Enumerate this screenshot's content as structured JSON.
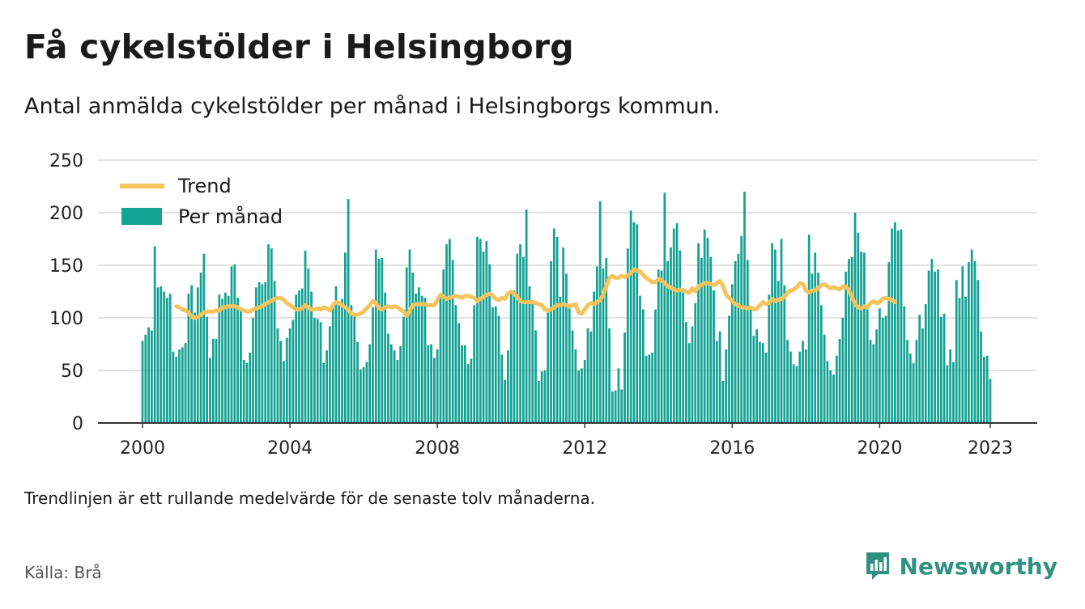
{
  "title": "Få cykelstölder i Helsingborg",
  "subtitle": "Antal anmälda cykelstölder per månad i Helsingborgs kommun.",
  "footnote": "Trendlinjen är ett rullande medelvärde för de senaste tolv månaderna.",
  "source": "Källa: Brå",
  "brand": "Newsworthy",
  "colors": {
    "bar": "#12a193",
    "trend": "#f7c35c",
    "grid": "#d9d9d9",
    "brand": "#2f9182"
  },
  "chart_data": {
    "type": "bar",
    "x_start": "2000-01",
    "x_end": "2023-02",
    "ylim": [
      0,
      250
    ],
    "yticks": [
      "0",
      "50",
      "100",
      "150",
      "200",
      "250"
    ],
    "xticks": [
      "2000",
      "2004",
      "2008",
      "2012",
      "2016",
      "2020",
      "2023"
    ],
    "grid": true,
    "legend_position": "top-left",
    "series": [
      {
        "name": "Per månad",
        "type": "bar",
        "values": [
          78,
          84,
          91,
          88,
          168,
          129,
          130,
          125,
          119,
          123,
          68,
          63,
          70,
          72,
          76,
          123,
          131,
          105,
          129,
          143,
          161,
          101,
          62,
          80,
          80,
          122,
          118,
          124,
          121,
          149,
          151,
          119,
          110,
          60,
          57,
          67,
          100,
          129,
          134,
          132,
          134,
          170,
          166,
          135,
          90,
          78,
          59,
          81,
          90,
          98,
          122,
          126,
          128,
          164,
          147,
          125,
          100,
          99,
          96,
          57,
          69,
          92,
          110,
          130,
          115,
          118,
          162,
          213,
          112,
          102,
          77,
          51,
          53,
          58,
          75,
          110,
          165,
          156,
          157,
          124,
          85,
          75,
          69,
          60,
          73,
          101,
          148,
          165,
          143,
          123,
          129,
          121,
          119,
          74,
          75,
          62,
          70,
          121,
          146,
          170,
          175,
          155,
          112,
          95,
          74,
          74,
          56,
          61,
          112,
          177,
          175,
          163,
          173,
          151,
          110,
          111,
          102,
          65,
          41,
          69,
          124,
          126,
          161,
          170,
          158,
          203,
          130,
          115,
          88,
          40,
          49,
          50,
          105,
          154,
          185,
          177,
          120,
          167,
          142,
          109,
          88,
          70,
          50,
          52,
          60,
          90,
          87,
          125,
          149,
          211,
          147,
          157,
          90,
          30,
          31,
          52,
          32,
          86,
          166,
          202,
          191,
          189,
          121,
          108,
          64,
          65,
          67,
          108,
          146,
          145,
          219,
          154,
          167,
          185,
          190,
          164,
          126,
          96,
          76,
          92,
          114,
          171,
          157,
          184,
          176,
          158,
          126,
          78,
          87,
          40,
          70,
          102,
          132,
          154,
          161,
          178,
          220,
          155,
          111,
          83,
          89,
          77,
          76,
          67,
          122,
          171,
          165,
          135,
          175,
          131,
          79,
          68,
          56,
          54,
          68,
          78,
          70,
          179,
          142,
          162,
          143,
          112,
          84,
          59,
          50,
          46,
          64,
          80,
          100,
          144,
          156,
          158,
          200,
          181,
          163,
          162,
          108,
          79,
          75,
          89,
          109,
          100,
          102,
          153,
          185,
          191,
          183,
          184,
          111,
          79,
          66,
          57,
          79,
          103,
          90,
          113,
          145,
          156,
          144,
          146,
          101,
          104,
          55,
          70,
          58,
          136,
          119,
          149,
          120,
          153,
          165,
          154,
          136,
          87,
          63,
          64,
          42
        ]
      },
      {
        "name": "Trend",
        "type": "line",
        "start": "2000-12",
        "values": [
          111,
          110,
          108,
          107,
          105,
          101,
          100,
          101,
          103,
          105,
          106,
          106,
          106,
          107,
          107,
          110,
          110,
          111,
          111,
          111,
          110,
          108,
          107,
          106,
          106,
          108,
          109,
          110,
          111,
          113,
          115,
          116,
          118,
          119,
          119,
          117,
          114,
          112,
          110,
          108,
          108,
          109,
          112,
          110,
          108,
          108,
          109,
          108,
          110,
          109,
          107,
          112,
          115,
          114,
          112,
          110,
          108,
          104,
          103,
          103,
          104,
          106,
          109,
          112,
          116,
          114,
          109,
          108,
          110,
          111,
          110,
          111,
          110,
          108,
          106,
          102,
          107,
          112,
          113,
          113,
          113,
          113,
          112,
          112,
          112,
          117,
          122,
          120,
          118,
          119,
          120,
          121,
          120,
          119,
          121,
          121,
          120,
          119,
          116,
          118,
          120,
          122,
          123,
          121,
          118,
          117,
          119,
          118,
          123,
          125,
          123,
          120,
          116,
          115,
          115,
          115,
          115,
          114,
          113,
          112,
          108,
          107,
          108,
          110,
          112,
          112,
          113,
          112,
          111,
          112,
          113,
          105,
          104,
          108,
          112,
          114,
          113,
          115,
          117,
          122,
          130,
          138,
          140,
          138,
          138,
          140,
          139,
          140,
          143,
          146,
          145,
          144,
          141,
          138,
          136,
          134,
          134,
          137,
          136,
          133,
          130,
          129,
          127,
          126,
          127,
          126,
          125,
          124,
          128,
          125,
          130,
          131,
          133,
          133,
          132,
          131,
          133,
          135,
          130,
          122,
          119,
          116,
          113,
          112,
          110,
          110,
          109,
          110,
          108,
          109,
          112,
          115,
          113,
          114,
          118,
          116,
          117,
          118,
          120,
          124,
          126,
          127,
          129,
          133,
          132,
          126,
          124,
          126,
          126,
          128,
          131,
          132,
          130,
          128,
          129,
          128,
          127,
          130,
          130,
          126,
          120,
          113,
          110,
          109,
          111,
          110,
          114,
          116,
          114,
          115,
          118,
          119,
          118,
          117,
          115
        ]
      }
    ]
  }
}
